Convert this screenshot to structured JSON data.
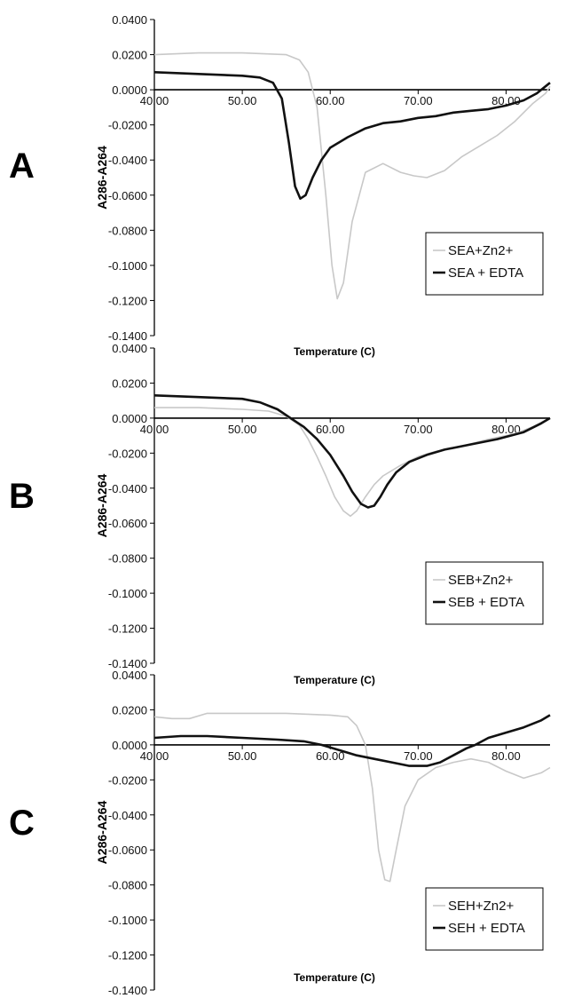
{
  "chart_data": [
    {
      "type": "line",
      "panel_label": "A",
      "xlabel": "Temperature (C)",
      "ylabel": "A286-A264",
      "xlim": [
        40,
        85
      ],
      "ylim": [
        -0.14,
        0.04
      ],
      "xticks": [
        "40.00",
        "50.00",
        "60.00",
        "70.00",
        "80.00"
      ],
      "yticks": [
        "0.0400",
        "0.0200",
        "0.0000",
        "-0.0200",
        "-0.0400",
        "-0.0600",
        "-0.0800",
        "-0.1000",
        "-0.1200",
        "-0.1400"
      ],
      "legend_position": "right",
      "series": [
        {
          "name": "SEA+Zn2+",
          "color": "#c8c8c8",
          "x": [
            40,
            45,
            50,
            55,
            56.5,
            57.5,
            58.5,
            59.5,
            60.2,
            60.8,
            61.5,
            62.5,
            64,
            66,
            68,
            69.5,
            71,
            73,
            75,
            77,
            79,
            81,
            83,
            84.5,
            85
          ],
          "y": [
            0.02,
            0.021,
            0.021,
            0.02,
            0.017,
            0.01,
            -0.01,
            -0.06,
            -0.1,
            -0.119,
            -0.11,
            -0.075,
            -0.047,
            -0.042,
            -0.047,
            -0.049,
            -0.05,
            -0.046,
            -0.038,
            -0.032,
            -0.026,
            -0.018,
            -0.008,
            -0.002,
            0.002
          ]
        },
        {
          "name": "SEA + EDTA",
          "color": "#111111",
          "x": [
            40,
            45,
            50,
            52,
            53.5,
            54.5,
            55.3,
            56,
            56.6,
            57.2,
            58,
            59,
            60,
            62,
            64,
            66,
            68,
            70,
            72,
            74,
            76,
            78,
            80,
            82,
            83.5,
            84.5,
            85
          ],
          "y": [
            0.01,
            0.009,
            0.008,
            0.007,
            0.004,
            -0.005,
            -0.03,
            -0.055,
            -0.062,
            -0.06,
            -0.05,
            -0.04,
            -0.033,
            -0.027,
            -0.022,
            -0.019,
            -0.018,
            -0.016,
            -0.015,
            -0.013,
            -0.012,
            -0.011,
            -0.009,
            -0.006,
            -0.002,
            0.002,
            0.004
          ]
        }
      ]
    },
    {
      "type": "line",
      "panel_label": "B",
      "xlabel": "Temperature (C)",
      "ylabel": "A286-A264",
      "xlim": [
        40,
        85
      ],
      "ylim": [
        -0.14,
        0.04
      ],
      "xticks": [
        "40.00",
        "50.00",
        "60.00",
        "70.00",
        "80.00"
      ],
      "yticks": [
        "0.0400",
        "0.0200",
        "0.0000",
        "-0.0200",
        "-0.0400",
        "-0.0600",
        "-0.0800",
        "-0.1000",
        "-0.1200",
        "-0.1400"
      ],
      "legend_position": "right",
      "series": [
        {
          "name": "SEB+Zn2+",
          "color": "#c8c8c8",
          "x": [
            40,
            45,
            50,
            53,
            55,
            56.5,
            57.5,
            58.5,
            59.5,
            60.5,
            61.5,
            62.3,
            63,
            64,
            65,
            66,
            67,
            68,
            70,
            72,
            75,
            78,
            81,
            83,
            85
          ],
          "y": [
            0.006,
            0.006,
            0.005,
            0.004,
            0.001,
            -0.004,
            -0.012,
            -0.022,
            -0.033,
            -0.045,
            -0.053,
            -0.056,
            -0.053,
            -0.045,
            -0.038,
            -0.033,
            -0.03,
            -0.027,
            -0.022,
            -0.019,
            -0.016,
            -0.012,
            -0.009,
            -0.005,
            0.0
          ]
        },
        {
          "name": "SEB + EDTA",
          "color": "#111111",
          "x": [
            40,
            45,
            50,
            52,
            54,
            55.5,
            57,
            58.5,
            60,
            61.5,
            62.5,
            63.5,
            64.3,
            65,
            65.7,
            66.5,
            67.5,
            69,
            71,
            73,
            76,
            79,
            82,
            84,
            85
          ],
          "y": [
            0.013,
            0.012,
            0.011,
            0.009,
            0.005,
            0.0,
            -0.005,
            -0.012,
            -0.021,
            -0.033,
            -0.042,
            -0.049,
            -0.051,
            -0.05,
            -0.045,
            -0.038,
            -0.031,
            -0.025,
            -0.021,
            -0.018,
            -0.015,
            -0.012,
            -0.008,
            -0.003,
            0.0
          ]
        }
      ]
    },
    {
      "type": "line",
      "panel_label": "C",
      "xlabel": "Temperature (C)",
      "ylabel": "A286-A264",
      "xlim": [
        40,
        85
      ],
      "ylim": [
        -0.14,
        0.04
      ],
      "xticks": [
        "40.00",
        "50.00",
        "60.00",
        "70.00",
        "80.00"
      ],
      "yticks": [
        "0.0400",
        "0.0200",
        "0.0000",
        "-0.0200",
        "-0.0400",
        "-0.0600",
        "-0.0800",
        "-0.1000",
        "-0.1200",
        "-0.1400"
      ],
      "legend_position": "right",
      "series": [
        {
          "name": "SEH+Zn2+",
          "color": "#c8c8c8",
          "x": [
            40,
            42,
            44,
            46,
            50,
            55,
            60,
            62,
            63,
            64,
            64.8,
            65.5,
            66.2,
            66.8,
            67.5,
            68.5,
            70,
            72,
            74,
            76,
            78,
            80,
            82,
            84,
            85
          ],
          "y": [
            0.016,
            0.015,
            0.015,
            0.018,
            0.018,
            0.018,
            0.017,
            0.016,
            0.011,
            0.0,
            -0.025,
            -0.06,
            -0.077,
            -0.078,
            -0.06,
            -0.035,
            -0.02,
            -0.013,
            -0.01,
            -0.008,
            -0.01,
            -0.015,
            -0.019,
            -0.016,
            -0.013
          ]
        },
        {
          "name": "SEH + EDTA",
          "color": "#111111",
          "x": [
            40,
            43,
            46,
            50,
            54,
            57,
            59,
            61,
            63,
            65,
            67,
            69,
            71,
            72.5,
            74,
            75.5,
            76.5,
            78,
            80,
            82,
            84,
            85
          ],
          "y": [
            0.004,
            0.005,
            0.005,
            0.004,
            0.003,
            0.002,
            0.0,
            -0.003,
            -0.006,
            -0.008,
            -0.01,
            -0.012,
            -0.012,
            -0.01,
            -0.006,
            -0.002,
            0.0,
            0.004,
            0.007,
            0.01,
            0.014,
            0.017
          ]
        }
      ]
    }
  ]
}
